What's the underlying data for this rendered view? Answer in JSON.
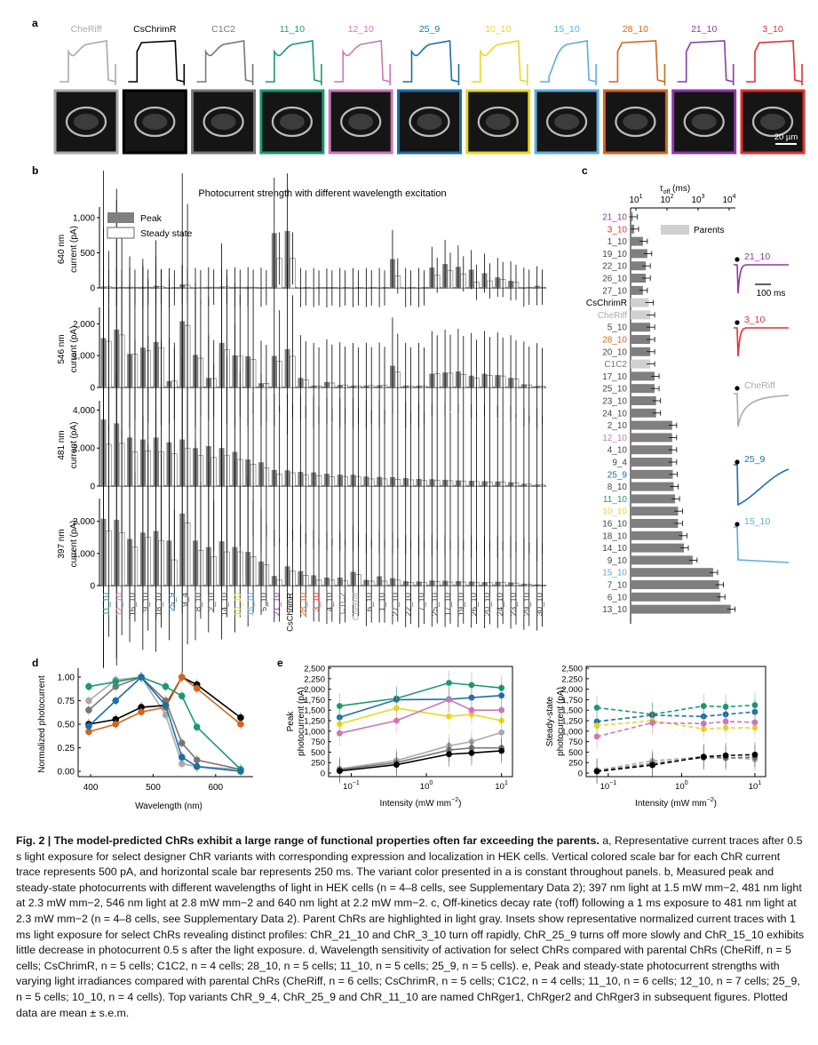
{
  "panel_labels": {
    "a": "a",
    "b": "b",
    "c": "c",
    "d": "d",
    "e": "e"
  },
  "colors": {
    "CheRiff": "#aaaaaa",
    "CsChrimR": "#000000",
    "C1C2": "#777777",
    "11_10": "#1a9a6e",
    "12_10": "#cc77b8",
    "25_9": "#1a6faa",
    "10_10": "#e8d824",
    "15_10": "#5aaee0",
    "28_10": "#d2661e",
    "21_10": "#8c3aa8",
    "3_10": "#e03030",
    "bar": "#7f7f7f",
    "parent_bar": "#d0d0d0"
  },
  "panel_a": {
    "variants": [
      "CheRiff",
      "CsChrimR",
      "C1C2",
      "11_10",
      "12_10",
      "25_9",
      "10_10",
      "15_10",
      "28_10",
      "21_10",
      "3_10"
    ],
    "scale_bar": "20 µm"
  },
  "panel_b": {
    "title": "Photocurrent strength with different wavelength excitation",
    "legend_peak": "Peak",
    "legend_steady": "Steady state",
    "ylabel_suffix": "current (pA)",
    "wavelengths": [
      "640 nm",
      "546 nm",
      "481 nm",
      "397 nm"
    ],
    "yticks": [
      [
        "0",
        "500",
        "1,000"
      ],
      [
        "0",
        "1,000",
        "2,000"
      ],
      [
        "0",
        "2,000",
        "4,000"
      ],
      [
        "0",
        "1,000",
        "2,000"
      ]
    ],
    "ymax": [
      1100,
      2400,
      4300,
      2600
    ],
    "categories": [
      "11_10",
      "12_10",
      "16_10",
      "9_10",
      "18_10",
      "25_9",
      "9_4",
      "8_10",
      "2_10",
      "14_10",
      "10_10",
      "15_10",
      "5_10",
      "21_10",
      "CsChrimR",
      "28_10",
      "3_10",
      "4_10",
      "C1C2",
      "CheRiff",
      "6_10",
      "1_10",
      "27_10",
      "22_10",
      "7_10",
      "25_10",
      "17_10",
      "19_10",
      "26_10",
      "20_10",
      "24_10",
      "23_10",
      "29_10",
      "30_10"
    ],
    "peak": [
      [
        20,
        10,
        15,
        15,
        30,
        5,
        50,
        5,
        15,
        20,
        15,
        15,
        10,
        780,
        810,
        5,
        5,
        0,
        5,
        5,
        5,
        5,
        410,
        5,
        5,
        290,
        340,
        300,
        260,
        210,
        150,
        100,
        10,
        30
      ],
      [
        1550,
        1820,
        1050,
        1250,
        1430,
        200,
        2080,
        1020,
        300,
        1400,
        1010,
        980,
        130,
        990,
        1200,
        300,
        60,
        170,
        80,
        60,
        60,
        70,
        680,
        60,
        60,
        430,
        470,
        500,
        370,
        430,
        390,
        300,
        100,
        50
      ],
      [
        3500,
        3300,
        2550,
        2450,
        2550,
        2300,
        2450,
        2000,
        2100,
        2000,
        1800,
        1400,
        1250,
        850,
        830,
        750,
        720,
        650,
        600,
        600,
        500,
        480,
        470,
        420,
        380,
        360,
        330,
        300,
        280,
        260,
        240,
        200,
        120,
        80
      ],
      [
        2080,
        2050,
        1450,
        1650,
        1700,
        1400,
        2240,
        1400,
        1200,
        1380,
        1200,
        1050,
        750,
        300,
        600,
        450,
        320,
        250,
        250,
        430,
        180,
        290,
        230,
        140,
        130,
        160,
        150,
        140,
        130,
        110,
        120,
        100,
        60,
        40
      ]
    ],
    "steady": [
      [
        15,
        10,
        10,
        10,
        20,
        0,
        40,
        5,
        10,
        15,
        10,
        10,
        5,
        420,
        420,
        0,
        0,
        0,
        0,
        0,
        0,
        0,
        170,
        0,
        0,
        180,
        250,
        200,
        80,
        100,
        120,
        80,
        10,
        10
      ],
      [
        1450,
        1650,
        1050,
        1150,
        1250,
        200,
        1950,
        920,
        280,
        1180,
        980,
        880,
        130,
        820,
        980,
        240,
        50,
        140,
        80,
        50,
        60,
        70,
        480,
        50,
        50,
        430,
        450,
        410,
        290,
        380,
        360,
        270,
        80,
        40
      ],
      [
        2200,
        2250,
        1800,
        1850,
        1800,
        1700,
        2000,
        1600,
        1500,
        1600,
        1400,
        1150,
        950,
        630,
        700,
        600,
        550,
        480,
        500,
        480,
        380,
        380,
        360,
        330,
        300,
        300,
        280,
        250,
        240,
        210,
        210,
        180,
        100,
        60
      ],
      [
        1700,
        1650,
        1200,
        1500,
        1400,
        800,
        1950,
        1100,
        900,
        1050,
        1050,
        900,
        650,
        170,
        450,
        320,
        170,
        170,
        150,
        350,
        140,
        140,
        170,
        100,
        100,
        120,
        110,
        110,
        100,
        90,
        100,
        80,
        40,
        20
      ]
    ]
  },
  "panel_c": {
    "axis_title": "τ",
    "axis_sub": "off",
    "axis_unit": " (ms)",
    "ticks": [
      "10",
      "10",
      "10",
      "10"
    ],
    "tick_exp": [
      "1",
      "2",
      "3",
      "4"
    ],
    "legend": "Parents",
    "rows": [
      "21_10",
      "3_10",
      "1_10",
      "19_10",
      "22_10",
      "26_10",
      "27_10",
      "CsChrimR",
      "CheRiff",
      "5_10",
      "28_10",
      "20_10",
      "C1C2",
      "17_10",
      "25_10",
      "23_10",
      "24_10",
      "2_10",
      "12_10",
      "4_10",
      "9_4",
      "25_9",
      "8_10",
      "11_10",
      "10_10",
      "16_10",
      "18_10",
      "14_10",
      "9_10",
      "15_10",
      "7_10",
      "6_10",
      "13_10"
    ],
    "log_tau": [
      0.45,
      0.5,
      0.8,
      0.95,
      0.9,
      0.9,
      0.8,
      1.0,
      1.05,
      1.05,
      1.05,
      1.05,
      1.05,
      1.2,
      1.2,
      1.25,
      1.25,
      1.8,
      1.8,
      1.8,
      1.8,
      1.82,
      1.85,
      1.9,
      2.0,
      2.0,
      2.15,
      2.2,
      2.5,
      3.2,
      3.4,
      3.45,
      3.8
    ],
    "parents": [
      "CsChrimR",
      "CheRiff",
      "C1C2"
    ],
    "inset_labels": [
      "21_10",
      "3_10",
      "CheRiff",
      "25_9",
      "15_10"
    ],
    "inset_scale": "100 ms"
  },
  "panel_d": {
    "ylabel": "Normalized photocurrent",
    "xlabel": "Wavelength (nm)",
    "xticks": [
      "400",
      "500",
      "600"
    ],
    "yticks": [
      "0.00",
      "0.25",
      "0.50",
      "0.75",
      "1.00"
    ],
    "x": [
      397,
      440,
      481,
      520,
      546,
      570,
      640
    ],
    "series": [
      {
        "key": "CheRiff",
        "values": [
          0.75,
          0.97,
          1.0,
          0.6,
          0.08,
          0.05,
          0.02
        ]
      },
      {
        "key": "CsChrimR",
        "values": [
          0.5,
          0.55,
          0.68,
          0.7,
          1.0,
          0.92,
          0.57
        ]
      },
      {
        "key": "C1C2",
        "values": [
          0.65,
          0.9,
          1.0,
          0.75,
          0.3,
          0.12,
          0.02
        ]
      },
      {
        "key": "28_10",
        "values": [
          0.42,
          0.5,
          0.63,
          0.68,
          1.0,
          0.88,
          0.5
        ]
      },
      {
        "key": "11_10",
        "values": [
          0.9,
          0.95,
          1.0,
          0.9,
          0.8,
          0.47,
          0.02
        ]
      },
      {
        "key": "25_9",
        "values": [
          0.48,
          0.75,
          1.0,
          0.7,
          0.15,
          0.05,
          0.0
        ]
      }
    ]
  },
  "panel_e": {
    "xlabel": "Intensity (mW mm",
    "xlabel_sup": "−2",
    "xlabel_end": ")",
    "ylabel_peak": [
      "Peak",
      "photocurrent (pA)"
    ],
    "ylabel_ss": [
      "Steady-state",
      "photocurrent (pA)"
    ],
    "yticks": [
      "0",
      "250",
      "500",
      "750",
      "1,000",
      "1,250",
      "1,500",
      "1,750",
      "2,000",
      "2,250",
      "2,500"
    ],
    "xticks": [
      "10",
      "10",
      "10"
    ],
    "xtick_exp": [
      "−1",
      "0",
      "1"
    ],
    "x": [
      0.07,
      0.4,
      2,
      4,
      10
    ],
    "peak": [
      {
        "key": "11_10",
        "values": [
          1600,
          1780,
          2150,
          2100,
          2030
        ]
      },
      {
        "key": "25_9",
        "values": [
          1330,
          1750,
          1760,
          1800,
          1850
        ]
      },
      {
        "key": "10_10",
        "values": [
          1170,
          1550,
          1350,
          1400,
          1250
        ]
      },
      {
        "key": "12_10",
        "values": [
          950,
          1250,
          1750,
          1500,
          1500
        ]
      },
      {
        "key": "CheRiff",
        "values": [
          100,
          300,
          650,
          750,
          970
        ]
      },
      {
        "key": "C1C2",
        "values": [
          80,
          250,
          550,
          600,
          600
        ]
      },
      {
        "key": "CsChrimR",
        "values": [
          50,
          200,
          450,
          480,
          530
        ]
      }
    ],
    "steady": [
      {
        "key": "11_10",
        "values": [
          1560,
          1400,
          1600,
          1580,
          1620
        ]
      },
      {
        "key": "25_9",
        "values": [
          1230,
          1380,
          1350,
          1400,
          1460
        ]
      },
      {
        "key": "10_10",
        "values": [
          1130,
          1250,
          1050,
          1080,
          1080
        ]
      },
      {
        "key": "12_10",
        "values": [
          870,
          1200,
          1180,
          1230,
          1210
        ]
      },
      {
        "key": "CheRiff",
        "values": [
          70,
          290,
          390,
          370,
          330
        ]
      },
      {
        "key": "C1C2",
        "values": [
          50,
          230,
          370,
          360,
          380
        ]
      },
      {
        "key": "CsChrimR",
        "values": [
          40,
          190,
          390,
          420,
          440
        ]
      }
    ]
  },
  "caption": {
    "fig": "Fig. 2 | The model-predicted ChRs exhibit a large range of functional properties often far exceeding the parents.",
    "text": " a, Representative current traces after 0.5 s light exposure for select designer ChR variants with corresponding expression and localization in HEK cells. Vertical colored scale bar for each ChR current trace represents 500 pA, and horizontal scale bar represents 250 ms. The variant color presented in a is constant throughout panels. b, Measured peak and steady-state photocurrents with different wavelengths of light in HEK cells (n = 4–8 cells, see Supplementary Data 2); 397 nm light at 1.5 mW mm−2, 481 nm light at 2.3 mW mm−2, 546 nm light at 2.8 mW mm−2 and 640 nm light at 2.2 mW mm−2. c, Off-kinetics decay rate (τoff) following a 1 ms exposure to 481 nm light at 2.3 mW mm−2 (n = 4–8 cells, see Supplementary Data 2). Parent ChRs are highlighted in light gray. Insets show representative normalized current traces with 1 ms light exposure for select ChRs revealing distinct profiles: ChR_21_10 and ChR_3_10 turn off rapidly, ChR_25_9 turns off more slowly and ChR_15_10 exhibits little decrease in photocurrent 0.5 s after the light exposure. d, Wavelength sensitivity of activation for select ChRs compared with parental ChRs (CheRiff, n = 5 cells; CsChrimR, n = 5 cells; C1C2, n = 4 cells; 28_10, n = 5 cells; 11_10, n = 5 cells; 25_9, n = 5 cells). e, Peak and steady-state photocurrent strengths with varying light irradiances compared with parental ChRs (CheRiff, n = 6 cells; CsChrimR, n = 5 cells; C1C2, n = 4 cells; 11_10, n = 6 cells; 12_10, n = 7 cells; 25_9, n = 5 cells; 10_10, n = 4 cells). Top variants ChR_9_4, ChR_25_9 and ChR_11_10 are named ChRger1, ChRger2 and ChRger3 in subsequent figures. Plotted data are mean ± s.e.m."
  }
}
